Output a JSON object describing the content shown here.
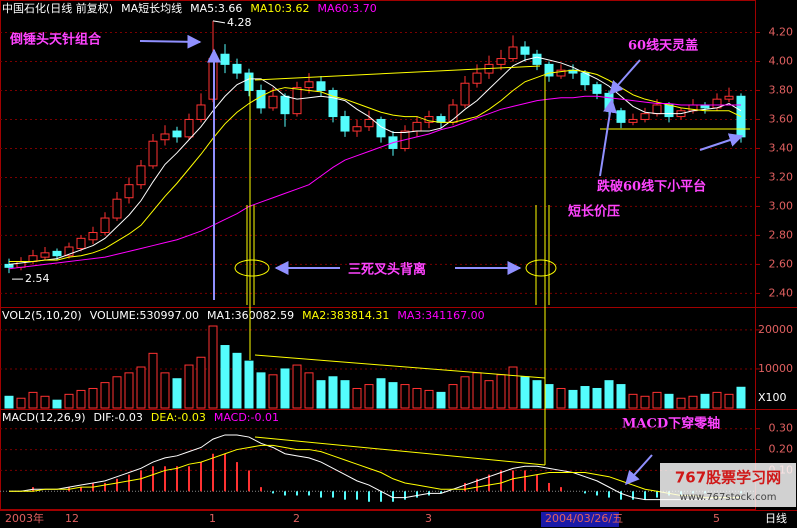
{
  "chart_data": [
    {
      "type": "candlestick",
      "title": "中国石化(日线 前复权)",
      "subtitle": "MA短长均线",
      "categories": [
        "2003年",
        null,
        null,
        null,
        null,
        "12",
        null,
        null,
        null,
        null,
        null,
        null,
        null,
        null,
        null,
        null,
        null,
        "1",
        null,
        null,
        null,
        null,
        null,
        null,
        "2",
        null,
        null,
        null,
        null,
        null,
        null,
        null,
        null,
        null,
        null,
        "3",
        null,
        null,
        null,
        null,
        null,
        null,
        null,
        null,
        null,
        "2004/03/26/五",
        null,
        null,
        null,
        null,
        null,
        null,
        null,
        null,
        null,
        null,
        null,
        null,
        null,
        "5",
        null,
        null
      ],
      "open": [
        2.6,
        2.58,
        2.62,
        2.65,
        2.69,
        2.66,
        2.71,
        2.77,
        2.82,
        2.92,
        3.06,
        3.15,
        3.28,
        3.46,
        3.52,
        3.48,
        3.6,
        3.74,
        4.05,
        3.98,
        3.92,
        3.8,
        3.68,
        3.76,
        3.64,
        3.82,
        3.86,
        3.8,
        3.62,
        3.52,
        3.55,
        3.6,
        3.48,
        3.4,
        3.52,
        3.58,
        3.62,
        3.58,
        3.7,
        3.85,
        3.92,
        3.98,
        4.02,
        4.1,
        4.05,
        3.98,
        3.9,
        3.94,
        3.92,
        3.84,
        3.78,
        3.66,
        3.58,
        3.6,
        3.64,
        3.7,
        3.62,
        3.66,
        3.7,
        3.68,
        3.74,
        3.76
      ],
      "high": [
        2.64,
        2.65,
        2.7,
        2.72,
        2.71,
        2.75,
        2.8,
        2.86,
        2.96,
        3.1,
        3.2,
        3.32,
        3.5,
        3.56,
        3.55,
        3.64,
        3.78,
        4.28,
        4.12,
        4.02,
        3.95,
        3.84,
        3.82,
        3.78,
        3.86,
        3.92,
        3.9,
        3.82,
        3.66,
        3.6,
        3.66,
        3.62,
        3.52,
        3.56,
        3.62,
        3.66,
        3.64,
        3.74,
        3.9,
        3.98,
        4.04,
        4.08,
        4.18,
        4.14,
        4.08,
        4.0,
        3.98,
        3.98,
        3.94,
        3.86,
        3.8,
        3.68,
        3.64,
        3.68,
        3.74,
        3.72,
        3.68,
        3.74,
        3.72,
        3.78,
        3.82,
        3.78
      ],
      "low": [
        2.54,
        2.56,
        2.6,
        2.63,
        2.63,
        2.64,
        2.69,
        2.74,
        2.8,
        2.9,
        3.02,
        3.12,
        3.26,
        3.42,
        3.44,
        3.46,
        3.58,
        3.72,
        3.92,
        3.88,
        3.76,
        3.64,
        3.66,
        3.55,
        3.62,
        3.78,
        3.76,
        3.58,
        3.48,
        3.48,
        3.52,
        3.44,
        3.35,
        3.38,
        3.48,
        3.54,
        3.54,
        3.56,
        3.68,
        3.82,
        3.88,
        3.94,
        4.0,
        4.0,
        3.94,
        3.86,
        3.88,
        3.88,
        3.8,
        3.74,
        3.62,
        3.54,
        3.56,
        3.58,
        3.62,
        3.58,
        3.6,
        3.64,
        3.64,
        3.66,
        3.72,
        3.44
      ],
      "close": [
        2.58,
        2.62,
        2.66,
        2.68,
        2.66,
        2.72,
        2.78,
        2.82,
        2.92,
        3.05,
        3.15,
        3.28,
        3.45,
        3.5,
        3.48,
        3.6,
        3.7,
        4.02,
        3.98,
        3.92,
        3.8,
        3.68,
        3.76,
        3.64,
        3.82,
        3.86,
        3.8,
        3.62,
        3.52,
        3.55,
        3.6,
        3.48,
        3.4,
        3.52,
        3.58,
        3.62,
        3.58,
        3.7,
        3.85,
        3.92,
        3.98,
        4.02,
        4.1,
        4.05,
        3.98,
        3.9,
        3.94,
        3.92,
        3.84,
        3.78,
        3.66,
        3.58,
        3.6,
        3.64,
        3.7,
        3.62,
        3.66,
        3.7,
        3.68,
        3.74,
        3.76,
        3.48
      ],
      "up_color": "#ff3232",
      "down_color": "#54fcfc",
      "series": [
        {
          "name": "MA5:3.66",
          "color": "#ffffff",
          "values": [
            2.6,
            2.61,
            2.62,
            2.63,
            2.64,
            2.67,
            2.7,
            2.73,
            2.78,
            2.86,
            2.94,
            3.04,
            3.17,
            3.29,
            3.37,
            3.46,
            3.55,
            3.66,
            3.76,
            3.84,
            3.88,
            3.88,
            3.83,
            3.76,
            3.74,
            3.75,
            3.76,
            3.75,
            3.73,
            3.67,
            3.62,
            3.55,
            3.51,
            3.51,
            3.52,
            3.52,
            3.54,
            3.6,
            3.67,
            3.73,
            3.81,
            3.89,
            3.97,
            4.01,
            4.03,
            4.01,
            3.99,
            3.96,
            3.92,
            3.88,
            3.83,
            3.76,
            3.69,
            3.65,
            3.64,
            3.64,
            3.64,
            3.66,
            3.67,
            3.68,
            3.71,
            3.66
          ]
        },
        {
          "name": "MA10:3.62",
          "color": "#ffff00",
          "values": [
            2.62,
            2.62,
            2.62,
            2.63,
            2.63,
            2.65,
            2.66,
            2.68,
            2.71,
            2.76,
            2.81,
            2.87,
            2.97,
            3.07,
            3.16,
            3.26,
            3.36,
            3.47,
            3.57,
            3.65,
            3.71,
            3.76,
            3.8,
            3.82,
            3.81,
            3.8,
            3.79,
            3.76,
            3.74,
            3.71,
            3.68,
            3.65,
            3.63,
            3.62,
            3.62,
            3.59,
            3.58,
            3.58,
            3.6,
            3.62,
            3.67,
            3.73,
            3.8,
            3.86,
            3.89,
            3.92,
            3.93,
            3.94,
            3.93,
            3.91,
            3.87,
            3.82,
            3.77,
            3.74,
            3.72,
            3.7,
            3.68,
            3.67,
            3.66,
            3.66,
            3.66,
            3.62
          ]
        },
        {
          "name": "MA60:3.70",
          "color": "#ff00ff",
          "values": [
            2.57,
            2.58,
            2.59,
            2.6,
            2.61,
            2.62,
            2.63,
            2.64,
            2.65,
            2.67,
            2.69,
            2.71,
            2.73,
            2.75,
            2.77,
            2.8,
            2.83,
            2.87,
            2.91,
            2.95,
            3.0,
            3.03,
            3.06,
            3.09,
            3.12,
            3.15,
            3.21,
            3.27,
            3.32,
            3.35,
            3.38,
            3.41,
            3.44,
            3.46,
            3.48,
            3.5,
            3.53,
            3.55,
            3.58,
            3.61,
            3.64,
            3.67,
            3.69,
            3.71,
            3.73,
            3.74,
            3.75,
            3.75,
            3.76,
            3.76,
            3.75,
            3.74,
            3.73,
            3.72,
            3.71,
            3.71,
            3.7,
            3.7,
            3.7,
            3.7,
            3.7,
            3.7
          ]
        }
      ],
      "ylim": [
        2.32,
        4.3
      ],
      "yticks": [
        {
          "value": 4.2,
          "label": "4.20"
        },
        {
          "value": 4.0,
          "label": "4.00"
        },
        {
          "value": 3.8,
          "label": "3.80"
        },
        {
          "value": 3.6,
          "label": "3.60"
        },
        {
          "value": 3.4,
          "label": "3.40"
        },
        {
          "value": 3.2,
          "label": "3.20"
        },
        {
          "value": 3.0,
          "label": "3.00"
        },
        {
          "value": 2.8,
          "label": "2.80"
        },
        {
          "value": 2.6,
          "label": "2.60"
        },
        {
          "value": 2.4,
          "label": "2.40"
        }
      ],
      "grid": true
    },
    {
      "type": "bar",
      "title": "VOL2(5,10,20)",
      "subtitle": "VOLUME:530997.00",
      "values": [
        3000,
        2500,
        4000,
        3000,
        2000,
        3500,
        4500,
        5000,
        6500,
        8000,
        9000,
        10500,
        14000,
        9000,
        7500,
        11000,
        13000,
        21000,
        16000,
        14000,
        12000,
        9000,
        8500,
        10000,
        11000,
        9000,
        7000,
        8000,
        7000,
        5000,
        6000,
        7500,
        6500,
        6000,
        5000,
        4500,
        4000,
        6000,
        8000,
        9000,
        7000,
        8500,
        10500,
        8000,
        7000,
        6000,
        5000,
        4500,
        5500,
        5000,
        7000,
        6000,
        3500,
        3000,
        4000,
        3500,
        2500,
        3000,
        3500,
        4000,
        3500,
        5309.97
      ],
      "legend": [
        {
          "name": "MA1:360082.59",
          "color": "#ffffff"
        },
        {
          "name": "MA2:383814.31",
          "color": "#ffff00"
        },
        {
          "name": "MA3:341167.00",
          "color": "#ff00ff"
        }
      ],
      "unit_label": "X100",
      "ylim": [
        0,
        25100
      ],
      "yticks": [
        20000,
        10000
      ],
      "grid": true
    },
    {
      "type": "macd",
      "title": "MACD(12,26,9)",
      "values": [
        0.0,
        0.0,
        0.02,
        0.0,
        0.0,
        0.02,
        0.02,
        0.04,
        0.04,
        0.06,
        0.08,
        0.1,
        0.12,
        0.12,
        0.12,
        0.12,
        0.14,
        0.18,
        0.18,
        0.14,
        0.1,
        0.02,
        -0.01,
        -0.02,
        -0.02,
        -0.02,
        -0.03,
        -0.03,
        -0.04,
        -0.04,
        -0.05,
        -0.05,
        -0.05,
        -0.04,
        -0.03,
        -0.02,
        -0.01,
        0.0,
        0.04,
        0.06,
        0.08,
        0.1,
        0.1,
        0.1,
        0.08,
        0.04,
        0.02,
        0.0,
        -0.01,
        -0.02,
        -0.03,
        -0.04,
        -0.04,
        -0.04,
        -0.03,
        -0.02,
        -0.02,
        -0.01,
        -0.01,
        0.0,
        0.0,
        -0.01
      ],
      "up_color": "#ff3232",
      "down_color": "#54fcfc",
      "series": [
        {
          "name": "DIF:-0.03",
          "color": "#ffffff",
          "values": [
            0.0,
            0.0,
            0.01,
            0.01,
            0.01,
            0.02,
            0.03,
            0.04,
            0.05,
            0.07,
            0.09,
            0.11,
            0.14,
            0.16,
            0.17,
            0.19,
            0.21,
            0.25,
            0.27,
            0.27,
            0.26,
            0.23,
            0.21,
            0.18,
            0.17,
            0.16,
            0.14,
            0.11,
            0.08,
            0.05,
            0.03,
            0.0,
            -0.03,
            -0.03,
            -0.02,
            -0.01,
            -0.01,
            0.01,
            0.03,
            0.05,
            0.07,
            0.09,
            0.11,
            0.12,
            0.12,
            0.11,
            0.1,
            0.09,
            0.07,
            0.05,
            0.02,
            -0.01,
            -0.03,
            -0.04,
            -0.04,
            -0.04,
            -0.04,
            -0.04,
            -0.04,
            -0.03,
            -0.03,
            -0.03
          ]
        },
        {
          "name": "DEA:-0.03",
          "color": "#ffff00",
          "values": [
            0.0,
            0.0,
            0.0,
            0.01,
            0.01,
            0.01,
            0.02,
            0.02,
            0.03,
            0.04,
            0.05,
            0.06,
            0.08,
            0.1,
            0.11,
            0.13,
            0.14,
            0.16,
            0.18,
            0.2,
            0.21,
            0.22,
            0.22,
            0.21,
            0.2,
            0.2,
            0.19,
            0.17,
            0.15,
            0.13,
            0.11,
            0.09,
            0.06,
            0.04,
            0.03,
            0.02,
            0.01,
            0.01,
            0.01,
            0.02,
            0.03,
            0.04,
            0.06,
            0.07,
            0.08,
            0.09,
            0.09,
            0.09,
            0.09,
            0.08,
            0.07,
            0.05,
            0.03,
            0.01,
            0.0,
            -0.01,
            -0.02,
            -0.02,
            -0.03,
            -0.03,
            -0.03,
            -0.03
          ]
        }
      ],
      "legend": [
        {
          "name": "MACD:-0.01",
          "color": "#ff00ff"
        }
      ],
      "ylim": [
        -0.08,
        0.38
      ],
      "yticks": [
        {
          "value": 0.3,
          "label": "0.30"
        },
        {
          "value": 0.2,
          "label": "0.20"
        },
        {
          "value": 0.1,
          "label": "0.10"
        }
      ],
      "grid": true
    }
  ],
  "period_label": "日线",
  "annotations": [
    "倒锤头天针组合",
    "60线天灵盖",
    "三死叉头背离",
    "跌破60线下小平台",
    "短长价压",
    "MACD下穿零轴"
  ],
  "watermark": [
    "767股票学习网",
    "www.767stock.com"
  ]
}
